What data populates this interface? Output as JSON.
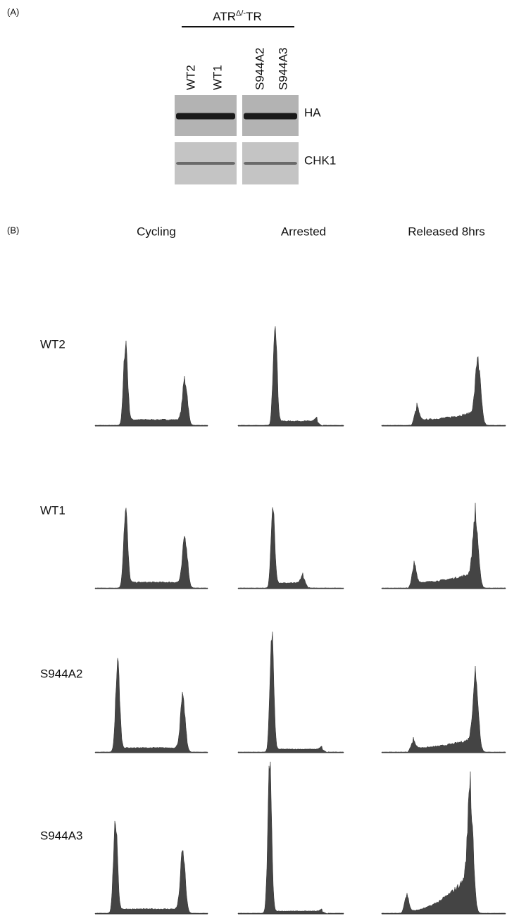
{
  "panel_a": {
    "label": "(A)",
    "header": {
      "base": "ATR",
      "sup": "Δ/-",
      "tail": "TR"
    },
    "lanes": [
      "WT2",
      "WT1",
      "S944A2",
      "S944A3"
    ],
    "blots": [
      "HA",
      "CHK1"
    ]
  },
  "panel_b": {
    "label": "(B)",
    "columns": [
      "Cycling",
      "Arrested",
      "Released 8hrs"
    ],
    "rows": [
      "WT2",
      "WT1",
      "S944A2",
      "S944A3"
    ]
  }
}
